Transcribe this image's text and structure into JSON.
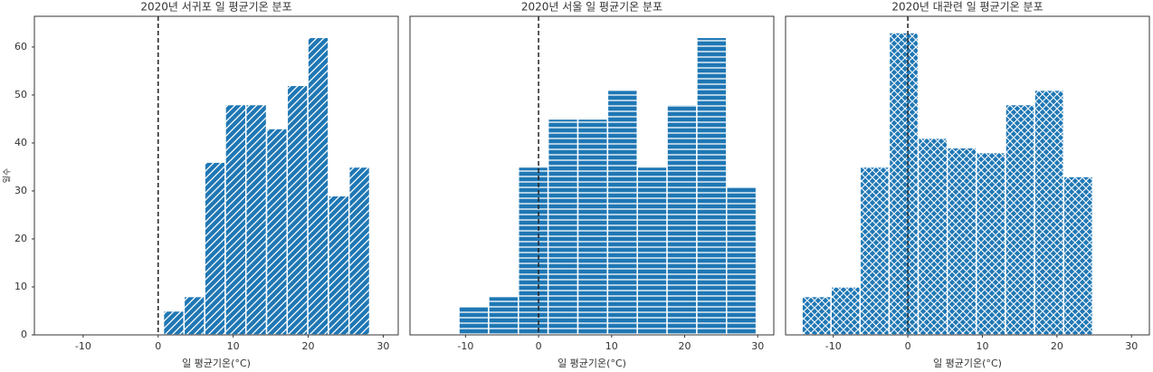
{
  "chart_data": [
    {
      "type": "histogram",
      "title": "2020년 서귀포 일 평균기온 분포",
      "xlabel": "일 평균기온(°C)",
      "ylabel": "일수",
      "bins": [
        0.7,
        3.45,
        6.2,
        8.95,
        11.7,
        14.45,
        17.2,
        19.95,
        22.7,
        25.45,
        28.2
      ],
      "values": [
        5,
        8,
        36,
        48,
        48,
        43,
        52,
        62,
        29,
        35
      ],
      "color": "#1f77b4",
      "hatch": "///",
      "xlim": [
        -16.5,
        32
      ],
      "xticks": [
        -10,
        0,
        10,
        20,
        30
      ],
      "ylim": [
        0,
        66.4
      ],
      "yticks": [
        0,
        10,
        20,
        30,
        40,
        50,
        60
      ],
      "vline": 0
    },
    {
      "type": "histogram",
      "title": "2020년 서울 일 평균기온 분포",
      "xlabel": "일 평균기온(°C)",
      "bins": [
        -10.9,
        -6.83,
        -2.76,
        1.31,
        5.38,
        9.45,
        13.52,
        17.59,
        21.66,
        25.73,
        29.8
      ],
      "values": [
        6,
        8,
        35,
        45,
        45,
        51,
        35,
        48,
        62,
        31
      ],
      "color": "#1f77b4",
      "hatch": "-",
      "xlim": [
        -17.6,
        32.2
      ],
      "xticks": [
        -10,
        0,
        10,
        20,
        30
      ],
      "ylim": [
        0,
        66.4
      ],
      "vline": 0
    },
    {
      "type": "histogram",
      "title": "2020년 대관련 일 평균기온 분포",
      "xlabel": "일 평균기온(°C)",
      "bins": [
        -14.2,
        -10.3,
        -6.4,
        -2.5,
        1.4,
        5.3,
        9.2,
        13.1,
        17.0,
        20.9,
        24.8
      ],
      "values": [
        8,
        10,
        35,
        63,
        41,
        39,
        38,
        48,
        51,
        33
      ],
      "color": "#1f77b4",
      "hatch": "xx",
      "xlim": [
        -16.4,
        32.4
      ],
      "xticks": [
        -10,
        0,
        10,
        20,
        30
      ],
      "ylim": [
        0,
        66.4
      ],
      "vline": 0
    }
  ]
}
